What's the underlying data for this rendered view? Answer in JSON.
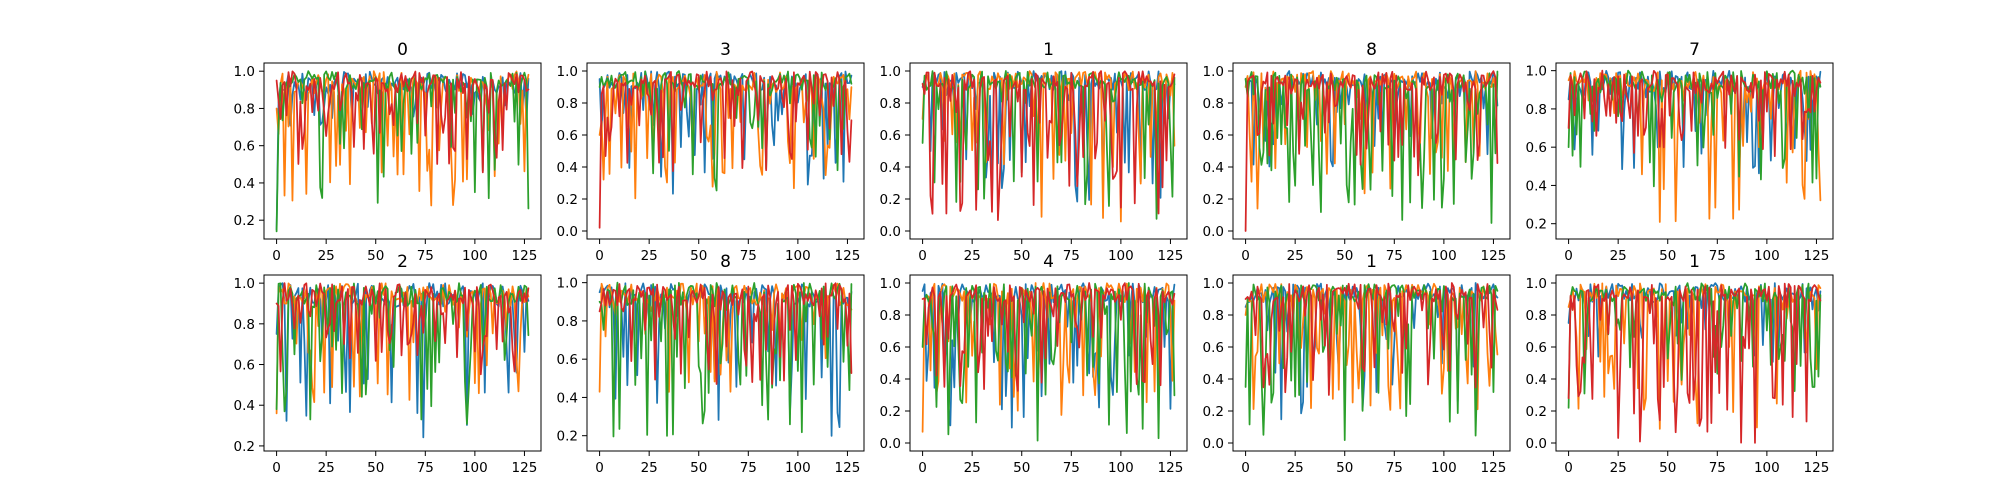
{
  "chart_data": [
    {
      "type": "line",
      "title": "0",
      "xlabel": "",
      "ylabel": "",
      "xlim": [
        -6.35,
        133.35
      ],
      "ylim": [
        0.099,
        1.044
      ],
      "xticks": [
        0,
        25,
        50,
        75,
        100,
        125
      ],
      "yticks": [
        0.2,
        0.4,
        0.6,
        0.8,
        1.0
      ],
      "xticklabels": [
        "0",
        "25",
        "50",
        "75",
        "100",
        "125"
      ],
      "yticklabels": [
        "0.2",
        "0.4",
        "0.6",
        "0.8",
        "1.0"
      ],
      "grid": false,
      "n_points": 128,
      "series": [
        {
          "color": "#1f77b4",
          "seed": 101,
          "min": 0.7,
          "dip_prob": 0.3,
          "start": 0.15
        },
        {
          "color": "#ff7f0e",
          "seed": 102,
          "min": 0.25,
          "dip_prob": 0.35,
          "start": 0.8
        },
        {
          "color": "#2ca02c",
          "seed": 103,
          "min": 0.25,
          "dip_prob": 0.3,
          "start": 0.14
        },
        {
          "color": "#d62728",
          "seed": 104,
          "min": 0.45,
          "dip_prob": 0.45,
          "start": 0.95
        }
      ]
    },
    {
      "type": "line",
      "title": "3",
      "xlabel": "",
      "ylabel": "",
      "xlim": [
        -6.35,
        133.35
      ],
      "ylim": [
        -0.05,
        1.05
      ],
      "xticks": [
        0,
        25,
        50,
        75,
        100,
        125
      ],
      "yticks": [
        0.0,
        0.2,
        0.4,
        0.6,
        0.8,
        1.0
      ],
      "xticklabels": [
        "0",
        "25",
        "50",
        "75",
        "100",
        "125"
      ],
      "yticklabels": [
        "0.0",
        "0.2",
        "0.4",
        "0.6",
        "0.8",
        "1.0"
      ],
      "grid": false,
      "n_points": 128,
      "series": [
        {
          "color": "#1f77b4",
          "seed": 201,
          "min": 0.2,
          "dip_prob": 0.35,
          "start": 0.95
        },
        {
          "color": "#ff7f0e",
          "seed": 202,
          "min": 0.18,
          "dip_prob": 0.35,
          "start": 0.6
        },
        {
          "color": "#2ca02c",
          "seed": 203,
          "min": 0.25,
          "dip_prob": 0.3,
          "start": 0.9
        },
        {
          "color": "#d62728",
          "seed": 204,
          "min": 0.35,
          "dip_prob": 0.4,
          "start": 0.02
        }
      ]
    },
    {
      "type": "line",
      "title": "1",
      "xlabel": "",
      "ylabel": "",
      "xlim": [
        -6.35,
        133.35
      ],
      "ylim": [
        -0.05,
        1.05
      ],
      "xticks": [
        0,
        25,
        50,
        75,
        100,
        125
      ],
      "yticks": [
        0.0,
        0.2,
        0.4,
        0.6,
        0.8,
        1.0
      ],
      "xticklabels": [
        "0",
        "25",
        "50",
        "75",
        "100",
        "125"
      ],
      "yticklabels": [
        "0.0",
        "0.2",
        "0.4",
        "0.6",
        "0.8",
        "1.0"
      ],
      "grid": false,
      "n_points": 128,
      "series": [
        {
          "color": "#1f77b4",
          "seed": 301,
          "min": 0.12,
          "dip_prob": 0.3,
          "start": 0.9
        },
        {
          "color": "#ff7f0e",
          "seed": 302,
          "min": 0.05,
          "dip_prob": 0.3,
          "start": 0.7
        },
        {
          "color": "#2ca02c",
          "seed": 303,
          "min": 0.05,
          "dip_prob": 0.3,
          "start": 0.55
        },
        {
          "color": "#d62728",
          "seed": 304,
          "min": 0.05,
          "dip_prob": 0.4,
          "start": 0.92
        }
      ]
    },
    {
      "type": "line",
      "title": "8",
      "xlabel": "",
      "ylabel": "",
      "xlim": [
        -6.35,
        133.35
      ],
      "ylim": [
        -0.05,
        1.05
      ],
      "xticks": [
        0,
        25,
        50,
        75,
        100,
        125
      ],
      "yticks": [
        0.0,
        0.2,
        0.4,
        0.6,
        0.8,
        1.0
      ],
      "xticklabels": [
        "0",
        "25",
        "50",
        "75",
        "100",
        "125"
      ],
      "yticklabels": [
        "0.0",
        "0.2",
        "0.4",
        "0.6",
        "0.8",
        "1.0"
      ],
      "grid": false,
      "n_points": 128,
      "series": [
        {
          "color": "#1f77b4",
          "seed": 401,
          "min": 0.4,
          "dip_prob": 0.35,
          "start": 0.95
        },
        {
          "color": "#ff7f0e",
          "seed": 402,
          "min": 0.1,
          "dip_prob": 0.35,
          "start": 0.9
        },
        {
          "color": "#2ca02c",
          "seed": 403,
          "min": 0.05,
          "dip_prob": 0.45,
          "start": 0.95
        },
        {
          "color": "#d62728",
          "seed": 404,
          "min": 0.3,
          "dip_prob": 0.4,
          "start": 0.0
        }
      ]
    },
    {
      "type": "line",
      "title": "7",
      "xlabel": "",
      "ylabel": "",
      "xlim": [
        -6.35,
        133.35
      ],
      "ylim": [
        0.12,
        1.04
      ],
      "xticks": [
        0,
        25,
        50,
        75,
        100,
        125
      ],
      "yticks": [
        0.2,
        0.4,
        0.6,
        0.8,
        1.0
      ],
      "xticklabels": [
        "0",
        "25",
        "50",
        "75",
        "100",
        "125"
      ],
      "yticklabels": [
        "0.2",
        "0.4",
        "0.6",
        "0.8",
        "1.0"
      ],
      "grid": false,
      "n_points": 128,
      "series": [
        {
          "color": "#1f77b4",
          "seed": 501,
          "min": 0.45,
          "dip_prob": 0.3,
          "start": 0.85
        },
        {
          "color": "#ff7f0e",
          "seed": 502,
          "min": 0.2,
          "dip_prob": 0.3,
          "start": 0.95
        },
        {
          "color": "#2ca02c",
          "seed": 503,
          "min": 0.35,
          "dip_prob": 0.3,
          "start": 0.6
        },
        {
          "color": "#d62728",
          "seed": 504,
          "min": 0.55,
          "dip_prob": 0.45,
          "start": 0.7
        }
      ]
    },
    {
      "type": "line",
      "title": "2",
      "xlabel": "",
      "ylabel": "",
      "xlim": [
        -6.35,
        133.35
      ],
      "ylim": [
        0.175,
        1.04
      ],
      "xticks": [
        0,
        25,
        50,
        75,
        100,
        125
      ],
      "yticks": [
        0.2,
        0.4,
        0.6,
        0.8,
        1.0
      ],
      "xticklabels": [
        "0",
        "25",
        "50",
        "75",
        "100",
        "125"
      ],
      "yticklabels": [
        "0.2",
        "0.4",
        "0.6",
        "0.8",
        "1.0"
      ],
      "grid": false,
      "n_points": 128,
      "series": [
        {
          "color": "#1f77b4",
          "seed": 601,
          "min": 0.22,
          "dip_prob": 0.25,
          "start": 0.75
        },
        {
          "color": "#ff7f0e",
          "seed": 602,
          "min": 0.4,
          "dip_prob": 0.3,
          "start": 0.36
        },
        {
          "color": "#2ca02c",
          "seed": 603,
          "min": 0.3,
          "dip_prob": 0.3,
          "start": 0.38
        },
        {
          "color": "#d62728",
          "seed": 604,
          "min": 0.55,
          "dip_prob": 0.4,
          "start": 0.9
        }
      ]
    },
    {
      "type": "line",
      "title": "8",
      "xlabel": "",
      "ylabel": "",
      "xlim": [
        -6.35,
        133.35
      ],
      "ylim": [
        0.12,
        1.04
      ],
      "xticks": [
        0,
        25,
        50,
        75,
        100,
        125
      ],
      "yticks": [
        0.2,
        0.4,
        0.6,
        0.8,
        1.0
      ],
      "xticklabels": [
        "0",
        "25",
        "50",
        "75",
        "100",
        "125"
      ],
      "yticklabels": [
        "0.2",
        "0.4",
        "0.6",
        "0.8",
        "1.0"
      ],
      "grid": false,
      "n_points": 128,
      "series": [
        {
          "color": "#1f77b4",
          "seed": 701,
          "min": 0.16,
          "dip_prob": 0.25,
          "start": 0.95
        },
        {
          "color": "#ff7f0e",
          "seed": 702,
          "min": 0.4,
          "dip_prob": 0.3,
          "start": 0.43
        },
        {
          "color": "#2ca02c",
          "seed": 703,
          "min": 0.18,
          "dip_prob": 0.35,
          "start": 0.9
        },
        {
          "color": "#d62728",
          "seed": 704,
          "min": 0.45,
          "dip_prob": 0.4,
          "start": 0.85
        }
      ]
    },
    {
      "type": "line",
      "title": "4",
      "xlabel": "",
      "ylabel": "",
      "xlim": [
        -6.35,
        133.35
      ],
      "ylim": [
        -0.05,
        1.05
      ],
      "xticks": [
        0,
        25,
        50,
        75,
        100,
        125
      ],
      "yticks": [
        0.0,
        0.2,
        0.4,
        0.6,
        0.8,
        1.0
      ],
      "xticklabels": [
        "0",
        "25",
        "50",
        "75",
        "100",
        "125"
      ],
      "yticklabels": [
        "0.0",
        "0.2",
        "0.4",
        "0.6",
        "0.8",
        "1.0"
      ],
      "grid": false,
      "n_points": 128,
      "series": [
        {
          "color": "#1f77b4",
          "seed": 801,
          "min": 0.06,
          "dip_prob": 0.3,
          "start": 0.95
        },
        {
          "color": "#ff7f0e",
          "seed": 802,
          "min": 0.05,
          "dip_prob": 0.4,
          "start": 0.07
        },
        {
          "color": "#2ca02c",
          "seed": 803,
          "min": 0.0,
          "dip_prob": 0.45,
          "start": 0.6
        },
        {
          "color": "#d62728",
          "seed": 804,
          "min": 0.3,
          "dip_prob": 0.45,
          "start": 0.9
        }
      ]
    },
    {
      "type": "line",
      "title": "1",
      "xlabel": "",
      "ylabel": "",
      "xlim": [
        -6.35,
        133.35
      ],
      "ylim": [
        -0.05,
        1.05
      ],
      "xticks": [
        0,
        25,
        50,
        75,
        100,
        125
      ],
      "yticks": [
        0.0,
        0.2,
        0.4,
        0.6,
        0.8,
        1.0
      ],
      "xticklabels": [
        "0",
        "25",
        "50",
        "75",
        "100",
        "125"
      ],
      "yticklabels": [
        "0.0",
        "0.2",
        "0.4",
        "0.6",
        "0.8",
        "1.0"
      ],
      "grid": false,
      "n_points": 128,
      "series": [
        {
          "color": "#1f77b4",
          "seed": 901,
          "min": 0.12,
          "dip_prob": 0.3,
          "start": 0.85
        },
        {
          "color": "#ff7f0e",
          "seed": 902,
          "min": 0.2,
          "dip_prob": 0.4,
          "start": 0.8
        },
        {
          "color": "#2ca02c",
          "seed": 903,
          "min": 0.0,
          "dip_prob": 0.45,
          "start": 0.35
        },
        {
          "color": "#d62728",
          "seed": 904,
          "min": 0.3,
          "dip_prob": 0.45,
          "start": 0.9
        }
      ]
    },
    {
      "type": "line",
      "title": "1",
      "xlabel": "",
      "ylabel": "",
      "xlim": [
        -6.35,
        133.35
      ],
      "ylim": [
        -0.05,
        1.05
      ],
      "xticks": [
        0,
        25,
        50,
        75,
        100,
        125
      ],
      "yticks": [
        0.0,
        0.2,
        0.4,
        0.6,
        0.8,
        1.0
      ],
      "xticklabels": [
        "0",
        "25",
        "50",
        "75",
        "100",
        "125"
      ],
      "yticklabels": [
        "0.0",
        "0.2",
        "0.4",
        "0.6",
        "0.8",
        "1.0"
      ],
      "grid": false,
      "n_points": 128,
      "series": [
        {
          "color": "#1f77b4",
          "seed": 1001,
          "min": 0.5,
          "dip_prob": 0.3,
          "start": 0.75
        },
        {
          "color": "#ff7f0e",
          "seed": 1002,
          "min": 0.05,
          "dip_prob": 0.4,
          "start": 0.85
        },
        {
          "color": "#2ca02c",
          "seed": 1003,
          "min": 0.3,
          "dip_prob": 0.35,
          "start": 0.22
        },
        {
          "color": "#d62728",
          "seed": 1004,
          "min": 0.0,
          "dip_prob": 0.4,
          "start": 0.28
        }
      ]
    }
  ]
}
